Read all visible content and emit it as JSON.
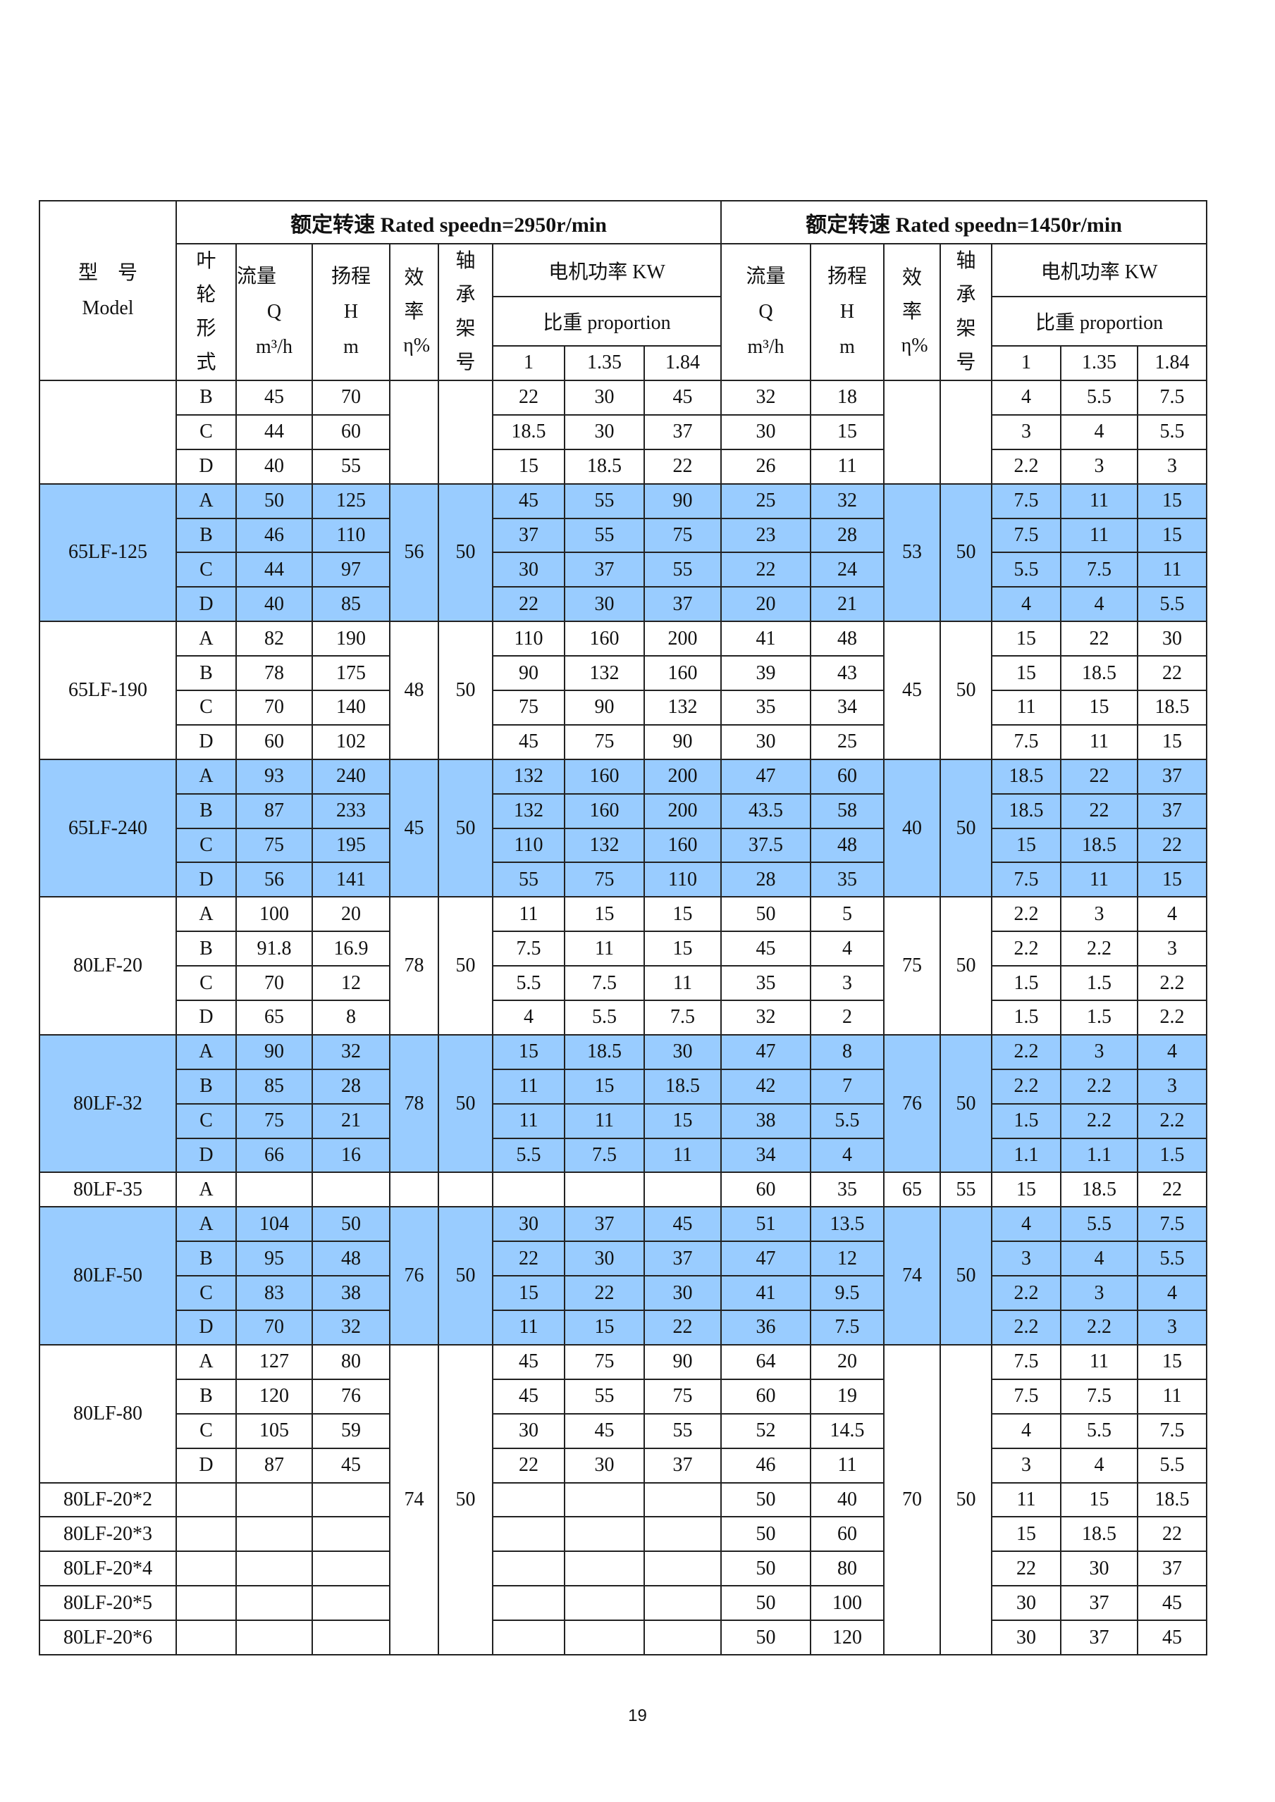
{
  "header": {
    "model_cn": "型　号",
    "model_en": "Model",
    "title_2950": "额定转速 Rated speedn=2950r/min",
    "title_1450": "额定转速 Rated speedn=1450r/min",
    "impeller": "叶轮形式",
    "flow": "流量",
    "flow_sym": "Q",
    "flow_unit": "m³/h",
    "head": "扬程",
    "head_sym": "H",
    "head_unit": "m",
    "eff": "效率",
    "eff_sym": "η",
    "eff_unit": "%",
    "bearing": "轴承架号",
    "motor_power": "电机功率 KW",
    "proportion": "比重 proportion",
    "prop_values": [
      "1",
      "1.35",
      "1.84"
    ]
  },
  "colors": {
    "highlight": "#99CCFF",
    "border": "#222222"
  },
  "model_groups": [
    {
      "model": "",
      "rows": 3,
      "blue": false
    },
    {
      "model": "65LF-125",
      "rows": 4,
      "blue": true
    },
    {
      "model": "65LF-190",
      "rows": 4,
      "blue": false
    },
    {
      "model": "65LF-240",
      "rows": 4,
      "blue": true
    },
    {
      "model": "80LF-20",
      "rows": 4,
      "blue": false
    },
    {
      "model": "80LF-32",
      "rows": 4,
      "blue": true
    },
    {
      "model": "80LF-35",
      "rows": 1,
      "blue": false
    },
    {
      "model": "80LF-50",
      "rows": 4,
      "blue": true
    },
    {
      "model": "80LF-80",
      "rows": 4,
      "blue": false
    },
    {
      "model": "80LF-20*2",
      "rows": 1,
      "blue": false
    },
    {
      "model": "80LF-20*3",
      "rows": 1,
      "blue": false
    },
    {
      "model": "80LF-20*4",
      "rows": 1,
      "blue": false
    },
    {
      "model": "80LF-20*5",
      "rows": 1,
      "blue": false
    },
    {
      "model": "80LF-20*6",
      "rows": 1,
      "blue": false
    }
  ],
  "perf_blocks": [
    {
      "rows": 3,
      "eta_2950": "",
      "bearing_2950": "",
      "eta_1450": "",
      "bearing_1450": ""
    },
    {
      "rows": 4,
      "eta_2950": "56",
      "bearing_2950": "50",
      "eta_1450": "53",
      "bearing_1450": "50"
    },
    {
      "rows": 4,
      "eta_2950": "48",
      "bearing_2950": "50",
      "eta_1450": "45",
      "bearing_1450": "50"
    },
    {
      "rows": 4,
      "eta_2950": "45",
      "bearing_2950": "50",
      "eta_1450": "40",
      "bearing_1450": "50"
    },
    {
      "rows": 4,
      "eta_2950": "78",
      "bearing_2950": "50",
      "eta_1450": "75",
      "bearing_1450": "50"
    },
    {
      "rows": 4,
      "eta_2950": "78",
      "bearing_2950": "50",
      "eta_1450": "76",
      "bearing_1450": "50"
    },
    {
      "rows": 1,
      "eta_2950": "",
      "bearing_2950": "",
      "eta_1450": "65",
      "bearing_1450": "55"
    },
    {
      "rows": 4,
      "eta_2950": "76",
      "bearing_2950": "50",
      "eta_1450": "74",
      "bearing_1450": "50"
    },
    {
      "rows": 9,
      "eta_2950": "74",
      "bearing_2950": "50",
      "eta_1450": "70",
      "bearing_1450": "50"
    }
  ],
  "row_fields": [
    "impeller",
    "q_2950",
    "h_2950",
    "kw1_2950",
    "kw135_2950",
    "kw184_2950",
    "q_1450",
    "h_1450",
    "kw1_1450",
    "kw135_1450",
    "kw184_1450"
  ],
  "rows": [
    [
      "B",
      "45",
      "70",
      "22",
      "30",
      "45",
      "32",
      "18",
      "4",
      "5.5",
      "7.5"
    ],
    [
      "C",
      "44",
      "60",
      "18.5",
      "30",
      "37",
      "30",
      "15",
      "3",
      "4",
      "5.5"
    ],
    [
      "D",
      "40",
      "55",
      "15",
      "18.5",
      "22",
      "26",
      "11",
      "2.2",
      "3",
      "3"
    ],
    [
      "A",
      "50",
      "125",
      "45",
      "55",
      "90",
      "25",
      "32",
      "7.5",
      "11",
      "15"
    ],
    [
      "B",
      "46",
      "110",
      "37",
      "55",
      "75",
      "23",
      "28",
      "7.5",
      "11",
      "15"
    ],
    [
      "C",
      "44",
      "97",
      "30",
      "37",
      "55",
      "22",
      "24",
      "5.5",
      "7.5",
      "11"
    ],
    [
      "D",
      "40",
      "85",
      "22",
      "30",
      "37",
      "20",
      "21",
      "4",
      "4",
      "5.5"
    ],
    [
      "A",
      "82",
      "190",
      "110",
      "160",
      "200",
      "41",
      "48",
      "15",
      "22",
      "30"
    ],
    [
      "B",
      "78",
      "175",
      "90",
      "132",
      "160",
      "39",
      "43",
      "15",
      "18.5",
      "22"
    ],
    [
      "C",
      "70",
      "140",
      "75",
      "90",
      "132",
      "35",
      "34",
      "11",
      "15",
      "18.5"
    ],
    [
      "D",
      "60",
      "102",
      "45",
      "75",
      "90",
      "30",
      "25",
      "7.5",
      "11",
      "15"
    ],
    [
      "A",
      "93",
      "240",
      "132",
      "160",
      "200",
      "47",
      "60",
      "18.5",
      "22",
      "37"
    ],
    [
      "B",
      "87",
      "233",
      "132",
      "160",
      "200",
      "43.5",
      "58",
      "18.5",
      "22",
      "37"
    ],
    [
      "C",
      "75",
      "195",
      "110",
      "132",
      "160",
      "37.5",
      "48",
      "15",
      "18.5",
      "22"
    ],
    [
      "D",
      "56",
      "141",
      "55",
      "75",
      "110",
      "28",
      "35",
      "7.5",
      "11",
      "15"
    ],
    [
      "A",
      "100",
      "20",
      "11",
      "15",
      "15",
      "50",
      "5",
      "2.2",
      "3",
      "4"
    ],
    [
      "B",
      "91.8",
      "16.9",
      "7.5",
      "11",
      "15",
      "45",
      "4",
      "2.2",
      "2.2",
      "3"
    ],
    [
      "C",
      "70",
      "12",
      "5.5",
      "7.5",
      "11",
      "35",
      "3",
      "1.5",
      "1.5",
      "2.2"
    ],
    [
      "D",
      "65",
      "8",
      "4",
      "5.5",
      "7.5",
      "32",
      "2",
      "1.5",
      "1.5",
      "2.2"
    ],
    [
      "A",
      "90",
      "32",
      "15",
      "18.5",
      "30",
      "47",
      "8",
      "2.2",
      "3",
      "4"
    ],
    [
      "B",
      "85",
      "28",
      "11",
      "15",
      "18.5",
      "42",
      "7",
      "2.2",
      "2.2",
      "3"
    ],
    [
      "C",
      "75",
      "21",
      "11",
      "11",
      "15",
      "38",
      "5.5",
      "1.5",
      "2.2",
      "2.2"
    ],
    [
      "D",
      "66",
      "16",
      "5.5",
      "7.5",
      "11",
      "34",
      "4",
      "1.1",
      "1.1",
      "1.5"
    ],
    [
      "A",
      "",
      "",
      "",
      "",
      "",
      "60",
      "35",
      "15",
      "18.5",
      "22"
    ],
    [
      "A",
      "104",
      "50",
      "30",
      "37",
      "45",
      "51",
      "13.5",
      "4",
      "5.5",
      "7.5"
    ],
    [
      "B",
      "95",
      "48",
      "22",
      "30",
      "37",
      "47",
      "12",
      "3",
      "4",
      "5.5"
    ],
    [
      "C",
      "83",
      "38",
      "15",
      "22",
      "30",
      "41",
      "9.5",
      "2.2",
      "3",
      "4"
    ],
    [
      "D",
      "70",
      "32",
      "11",
      "15",
      "22",
      "36",
      "7.5",
      "2.2",
      "2.2",
      "3"
    ],
    [
      "A",
      "127",
      "80",
      "45",
      "75",
      "90",
      "64",
      "20",
      "7.5",
      "11",
      "15"
    ],
    [
      "B",
      "120",
      "76",
      "45",
      "55",
      "75",
      "60",
      "19",
      "7.5",
      "7.5",
      "11"
    ],
    [
      "C",
      "105",
      "59",
      "30",
      "45",
      "55",
      "52",
      "14.5",
      "4",
      "5.5",
      "7.5"
    ],
    [
      "D",
      "87",
      "45",
      "22",
      "30",
      "37",
      "46",
      "11",
      "3",
      "4",
      "5.5"
    ],
    [
      "",
      "",
      "",
      "",
      "",
      "",
      "50",
      "40",
      "11",
      "15",
      "18.5"
    ],
    [
      "",
      "",
      "",
      "",
      "",
      "",
      "50",
      "60",
      "15",
      "18.5",
      "22"
    ],
    [
      "",
      "",
      "",
      "",
      "",
      "",
      "50",
      "80",
      "22",
      "30",
      "37"
    ],
    [
      "",
      "",
      "",
      "",
      "",
      "",
      "50",
      "100",
      "30",
      "37",
      "45"
    ],
    [
      "",
      "",
      "",
      "",
      "",
      "",
      "50",
      "120",
      "30",
      "37",
      "45"
    ]
  ],
  "page_number": "19"
}
